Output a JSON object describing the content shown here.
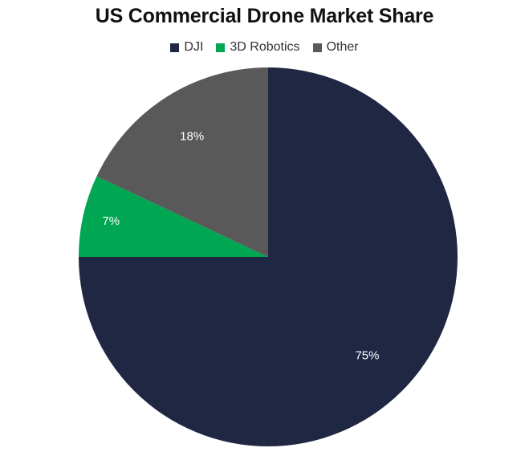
{
  "chart_data": {
    "type": "pie",
    "title": "US Commercial Drone Market Share",
    "categories": [
      "DJI",
      "3D Robotics",
      "Other"
    ],
    "values": [
      75,
      7,
      18
    ],
    "data_labels": [
      "75%",
      "7%",
      "18%"
    ],
    "colors": [
      "#1f2743",
      "#00a651",
      "#595959"
    ],
    "legend_position": "top",
    "start_angle_deg": 0,
    "direction": "clockwise"
  }
}
